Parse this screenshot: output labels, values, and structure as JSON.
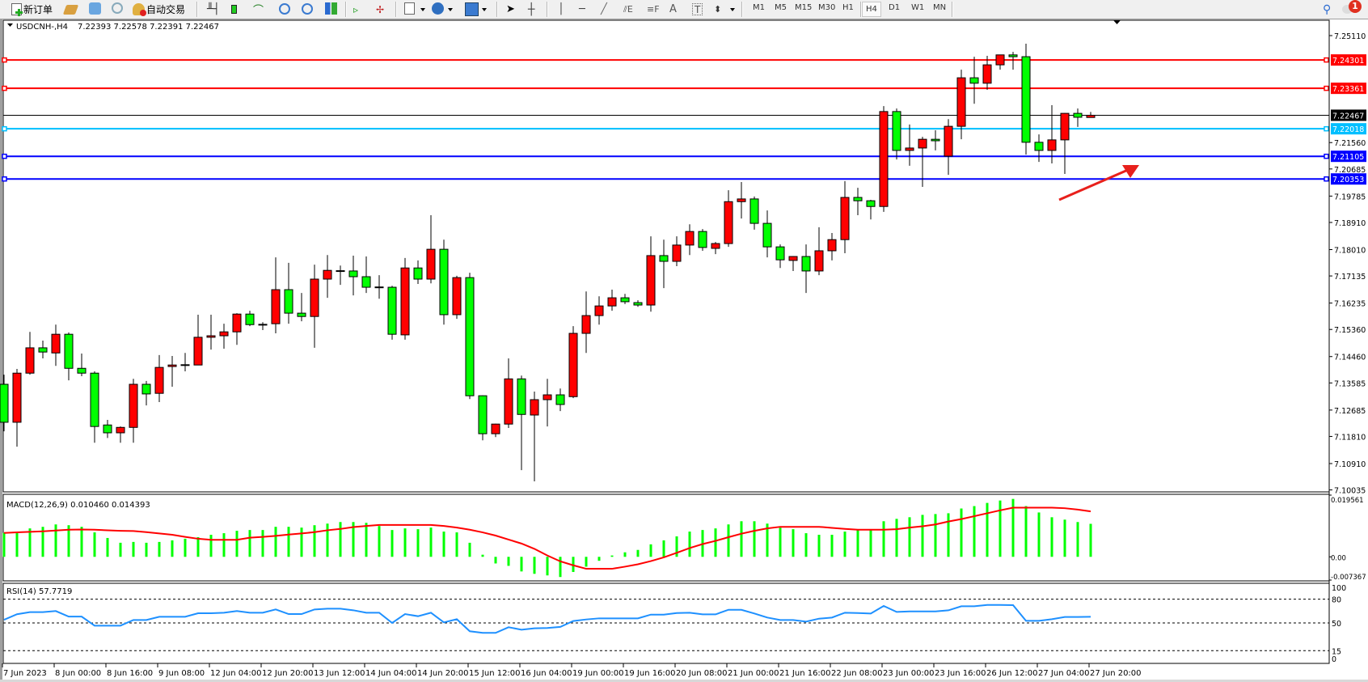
{
  "toolbar": {
    "new_order_label": "新订单",
    "auto_trading_label": "自动交易",
    "timeframes": [
      "M1",
      "M5",
      "M15",
      "M30",
      "H1",
      "H4",
      "D1",
      "W1",
      "MN"
    ],
    "active_timeframe": "H4",
    "notification_count": "1",
    "icons": [
      "new-order-icon",
      "market-watch-icon",
      "navigator-icon",
      "signals-icon",
      "auto-trading-icon",
      "bar-chart-icon",
      "candlestick-chart-icon",
      "line-chart-icon",
      "zoom-in-icon",
      "zoom-out-icon",
      "tile-windows-icon",
      "auto-scroll-icon",
      "chart-shift-icon",
      "new-indicator-icon",
      "periods-clock-icon",
      "templates-icon",
      "cursor-icon",
      "crosshair-icon",
      "vertical-line-icon",
      "horizontal-line-icon",
      "trendline-icon",
      "equidistant-channel-icon",
      "fibonacci-icon",
      "text-icon",
      "text-label-icon",
      "arrows-icon",
      "search-icon",
      "notification-icon"
    ]
  },
  "chart_header": {
    "symbol": "USDCNH-,H4",
    "ohlc": "7.22393 7.22578 7.22391 7.22467"
  },
  "colors": {
    "up_candle": "#ff0000",
    "down_candle": "#00ff00",
    "macd_histogram": "#00ff00",
    "macd_signal": "#ff0000",
    "rsi_line": "#1e90ff",
    "arrow_annotation": "#e8201c"
  },
  "chart_data": [
    {
      "type": "candlestick",
      "title": "USDCNH-,H4",
      "ohlc_format": [
        "open",
        "high",
        "low",
        "close"
      ],
      "candles": [
        [
          7.1354,
          7.1386,
          7.1198,
          7.1228
        ],
        [
          7.1228,
          7.1405,
          7.1147,
          7.1391
        ],
        [
          7.1391,
          7.1528,
          7.1386,
          7.1475
        ],
        [
          7.1475,
          7.1499,
          7.144,
          7.1461
        ],
        [
          7.1458,
          7.1552,
          7.1415,
          7.152
        ],
        [
          7.152,
          7.1526,
          7.1367,
          7.1407
        ],
        [
          7.1407,
          7.1456,
          7.1381,
          7.1391
        ],
        [
          7.1391,
          7.1397,
          7.116,
          7.1214
        ],
        [
          7.1219,
          7.1236,
          7.1176,
          7.1193
        ],
        [
          7.1193,
          7.1214,
          7.116,
          7.1211
        ],
        [
          7.1211,
          7.1372,
          7.116,
          7.1354
        ],
        [
          7.1354,
          7.1365,
          7.1284,
          7.1322
        ],
        [
          7.1324,
          7.1451,
          7.1295,
          7.141
        ],
        [
          7.1413,
          7.1448,
          7.1346,
          7.1418
        ],
        [
          7.1418,
          7.1458,
          7.1397,
          7.1419
        ],
        [
          7.1418,
          7.1585,
          7.1418,
          7.151
        ],
        [
          7.151,
          7.1585,
          7.1469,
          7.1515
        ],
        [
          7.1515,
          7.1555,
          7.1472,
          7.1528
        ],
        [
          7.1528,
          7.159,
          7.1485,
          7.1587
        ],
        [
          7.1587,
          7.1598,
          7.1547,
          7.1552
        ],
        [
          7.1552,
          7.156,
          7.1534,
          7.1553
        ],
        [
          7.1555,
          7.1775,
          7.1523,
          7.1668
        ],
        [
          7.1668,
          7.1757,
          7.1555,
          7.159
        ],
        [
          7.159,
          7.1657,
          7.1563,
          7.1579
        ],
        [
          7.1579,
          7.1751,
          7.1475,
          7.1703
        ],
        [
          7.1703,
          7.1783,
          7.1641,
          7.1732
        ],
        [
          7.173,
          7.1748,
          7.1684,
          7.1731
        ],
        [
          7.173,
          7.1781,
          7.1649,
          7.1711
        ],
        [
          7.1711,
          7.1778,
          7.1657,
          7.1676
        ],
        [
          7.1676,
          7.1716,
          7.1638,
          7.1677
        ],
        [
          7.1676,
          7.1681,
          7.1502,
          7.152
        ],
        [
          7.1518,
          7.1773,
          7.1502,
          7.174
        ],
        [
          7.174,
          7.1765,
          7.1687,
          7.1703
        ],
        [
          7.1703,
          7.1915,
          7.1689,
          7.1802
        ],
        [
          7.1802,
          7.1834,
          7.1552,
          7.1585
        ],
        [
          7.1585,
          7.1714,
          7.1571,
          7.1708
        ],
        [
          7.1708,
          7.1724,
          7.1305,
          7.1316
        ],
        [
          7.1316,
          7.1317,
          7.1168,
          7.119
        ],
        [
          7.119,
          7.1223,
          7.1179,
          7.1222
        ],
        [
          7.1222,
          7.144,
          7.1209,
          7.1372
        ],
        [
          7.1372,
          7.1383,
          7.1069,
          7.1254
        ],
        [
          7.1252,
          7.133,
          7.1032,
          7.1303
        ],
        [
          7.1303,
          7.1372,
          7.1214,
          7.1319
        ],
        [
          7.1319,
          7.134,
          7.1265,
          7.1287
        ],
        [
          7.1313,
          7.1547,
          7.1308,
          7.1523
        ],
        [
          7.1523,
          7.1662,
          7.1458,
          7.1582
        ],
        [
          7.1582,
          7.1646,
          7.1552,
          7.1614
        ],
        [
          7.1614,
          7.1668,
          7.1598,
          7.1641
        ],
        [
          7.1641,
          7.1654,
          7.162,
          7.1628
        ],
        [
          7.1625,
          7.1633,
          7.1611,
          7.1617
        ],
        [
          7.1617,
          7.1845,
          7.1595,
          7.1781
        ],
        [
          7.1781,
          7.1834,
          7.1673,
          7.1762
        ],
        [
          7.1762,
          7.1845,
          7.1746,
          7.1816
        ],
        [
          7.1816,
          7.1885,
          7.1783,
          7.1861
        ],
        [
          7.1861,
          7.1869,
          7.1797,
          7.1808
        ],
        [
          7.1805,
          7.1826,
          7.1786,
          7.1821
        ],
        [
          7.1821,
          7.1998,
          7.181,
          7.196
        ],
        [
          7.196,
          7.2025,
          7.1904,
          7.1969
        ],
        [
          7.1969,
          7.1977,
          7.1867,
          7.1888
        ],
        [
          7.1888,
          7.1931,
          7.1775,
          7.181
        ],
        [
          7.181,
          7.1818,
          7.174,
          7.1767
        ],
        [
          7.1765,
          7.1779,
          7.173,
          7.1778
        ],
        [
          7.1778,
          7.1818,
          7.1657,
          7.173
        ],
        [
          7.173,
          7.1875,
          7.1716,
          7.1797
        ],
        [
          7.1797,
          7.1856,
          7.1765,
          7.1834
        ],
        [
          7.1834,
          7.2028,
          7.1789,
          7.1974
        ],
        [
          7.1974,
          7.2006,
          7.1915,
          7.1963
        ],
        [
          7.1963,
          7.1966,
          7.1901,
          7.1944
        ],
        [
          7.1944,
          7.2277,
          7.1926,
          7.2259
        ],
        [
          7.2259,
          7.2269,
          7.21,
          7.213
        ],
        [
          7.213,
          7.2216,
          7.2079,
          7.2138
        ],
        [
          7.2138,
          7.2175,
          7.2009,
          7.2167
        ],
        [
          7.2167,
          7.2197,
          7.213,
          7.2162
        ],
        [
          7.2111,
          7.2234,
          7.2049,
          7.221
        ],
        [
          7.221,
          7.2398,
          7.2167,
          7.2371
        ],
        [
          7.2371,
          7.2441,
          7.2285,
          7.2353
        ],
        [
          7.2353,
          7.2444,
          7.2331,
          7.2414
        ],
        [
          7.2414,
          7.2447,
          7.2398,
          7.2447
        ],
        [
          7.2447,
          7.2457,
          7.2398,
          7.2441
        ],
        [
          7.2441,
          7.2484,
          7.2116,
          7.2157
        ],
        [
          7.2157,
          7.2183,
          7.2092,
          7.213
        ],
        [
          7.213,
          7.228,
          7.2087,
          7.2165
        ],
        [
          7.2165,
          7.2254,
          7.2052,
          7.2253
        ],
        [
          7.2253,
          7.2269,
          7.2208,
          7.224
        ],
        [
          7.22393,
          7.22578,
          7.22391,
          7.22467
        ]
      ],
      "ylim": [
        7.0997,
        7.2562
      ],
      "y_ticks": [
        "7.25110",
        "7.21560",
        "7.20685",
        "7.19785",
        "7.18910",
        "7.18010",
        "7.17135",
        "7.16235",
        "7.15360",
        "7.14460",
        "7.13585",
        "7.12685",
        "7.11810",
        "7.10910",
        "7.10035"
      ],
      "x_tick_labels": [
        "7 Jun 2023",
        "8 Jun 00:00",
        "8 Jun 16:00",
        "9 Jun 08:00",
        "12 Jun 04:00",
        "12 Jun 20:00",
        "13 Jun 12:00",
        "14 Jun 04:00",
        "14 Jun 20:00",
        "15 Jun 12:00",
        "16 Jun 04:00",
        "19 Jun 00:00",
        "19 Jun 16:00",
        "20 Jun 08:00",
        "21 Jun 00:00",
        "21 Jun 16:00",
        "22 Jun 08:00",
        "23 Jun 00:00",
        "23 Jun 16:00",
        "26 Jun 12:00",
        "27 Jun 04:00",
        "27 Jun 20:00"
      ],
      "x_tick_every_n_bars": 4,
      "horizontal_lines": [
        {
          "price": "7.24301",
          "color": "#ff0000"
        },
        {
          "price": "7.23361",
          "color": "#ff0000"
        },
        {
          "price": "7.22467",
          "color": "#000000",
          "kind": "current-price"
        },
        {
          "price": "7.22018",
          "color": "#00bfff"
        },
        {
          "price": "7.21105",
          "color": "#0000ff"
        },
        {
          "price": "7.20353",
          "color": "#0000ff"
        }
      ],
      "annotation": "up-arrow",
      "grid": false
    },
    {
      "type": "bar",
      "title": "MACD(12,26,9) 0.010460 0.014393",
      "histogram": [
        0.00758,
        0.00758,
        0.00901,
        0.00951,
        0.01027,
        0.01002,
        0.00951,
        0.00775,
        0.00598,
        0.00446,
        0.00472,
        0.00446,
        0.00472,
        0.00522,
        0.00573,
        0.00623,
        0.00699,
        0.00749,
        0.00825,
        0.0085,
        0.0085,
        0.00951,
        0.00951,
        0.00926,
        0.01002,
        0.01053,
        0.01103,
        0.01103,
        0.01078,
        0.00977,
        0.0085,
        0.00901,
        0.00876,
        0.00926,
        0.008,
        0.00775,
        0.00446,
        0.00067,
        -0.0021,
        -0.00286,
        -0.00463,
        -0.00539,
        -0.00589,
        -0.0064,
        -0.0048,
        -0.00312,
        -0.00126,
        0.00042,
        0.00143,
        0.00219,
        0.00396,
        0.00522,
        0.00648,
        0.008,
        0.0085,
        0.00901,
        0.01027,
        0.01128,
        0.01128,
        0.01053,
        0.00926,
        0.00876,
        0.00749,
        0.00699,
        0.00699,
        0.008,
        0.0085,
        0.0085,
        0.01128,
        0.01204,
        0.01255,
        0.0133,
        0.01356,
        0.01381,
        0.01532,
        0.01608,
        0.01709,
        0.01785,
        0.01836,
        0.01608,
        0.01406,
        0.01255,
        0.01179,
        0.01103,
        0.01046
      ],
      "signal": [
        0.00758,
        0.00775,
        0.00791,
        0.00808,
        0.00834,
        0.00859,
        0.00867,
        0.00859,
        0.00842,
        0.00825,
        0.00817,
        0.00783,
        0.00741,
        0.00699,
        0.00632,
        0.00573,
        0.00539,
        0.00539,
        0.00539,
        0.00606,
        0.00632,
        0.00665,
        0.00707,
        0.00741,
        0.00783,
        0.00842,
        0.00884,
        0.00943,
        0.00977,
        0.0101,
        0.0101,
        0.0101,
        0.0101,
        0.0101,
        0.00977,
        0.00926,
        0.00859,
        0.00775,
        0.00674,
        0.00547,
        0.00421,
        0.00253,
        0.00042,
        -0.00143,
        -0.00269,
        -0.00379,
        -0.00379,
        -0.00379,
        -0.00312,
        -0.00236,
        -0.00135,
        -0.00017,
        0.00126,
        0.00278,
        0.00404,
        0.00505,
        0.00623,
        0.00733,
        0.00825,
        0.00901,
        0.00951,
        0.00951,
        0.00951,
        0.00951,
        0.00918,
        0.00884,
        0.00859,
        0.00859,
        0.00859,
        0.00876,
        0.00926,
        0.00968,
        0.01027,
        0.0112,
        0.01196,
        0.01288,
        0.01381,
        0.01474,
        0.01558,
        0.01558,
        0.01558,
        0.01558,
        0.01541,
        0.01499,
        0.014393
      ],
      "ylim": [
        -0.007367,
        0.019561
      ],
      "y_ticks": [
        "0.019561",
        "0.00",
        "-0.007367"
      ]
    },
    {
      "type": "line",
      "title": "RSI(14) 57.7719",
      "values": [
        54,
        61,
        63.6,
        63.6,
        65,
        58,
        58,
        46.6,
        46.6,
        46.6,
        53.7,
        53.7,
        57.8,
        57.8,
        57.8,
        62.2,
        62.2,
        62.9,
        65,
        62.9,
        62.9,
        67,
        61.2,
        61.2,
        67,
        68,
        68,
        66,
        62.9,
        62.9,
        50,
        61.2,
        58.5,
        62.9,
        50.7,
        54.7,
        39.5,
        37.5,
        37.5,
        44.6,
        41.5,
        43.2,
        43.6,
        45,
        52.4,
        54.4,
        55.8,
        55.8,
        55.8,
        55.8,
        60.5,
        60.5,
        62.5,
        62.9,
        60.8,
        60.8,
        66.6,
        66.6,
        61.9,
        56.8,
        53.7,
        53.7,
        51.7,
        55.4,
        56.8,
        62.9,
        62.5,
        61.9,
        71.4,
        63.9,
        64.6,
        64.6,
        64.6,
        65.9,
        71,
        71,
        72.7,
        72.7,
        72.4,
        52.7,
        52.7,
        54.7,
        57.5,
        57.5,
        57.77
      ],
      "ylim": [
        0,
        100
      ],
      "levels": [
        80,
        50,
        15
      ],
      "y_ticks": [
        "100",
        "80",
        "50",
        "15",
        "0"
      ]
    }
  ]
}
